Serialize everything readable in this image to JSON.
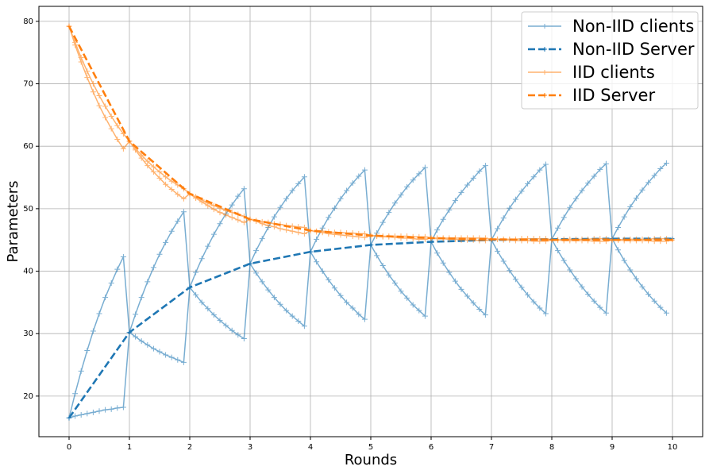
{
  "chart_data": {
    "type": "line",
    "xlabel": "Rounds",
    "ylabel": "Parameters",
    "xlim": [
      -0.5,
      10.5
    ],
    "ylim": [
      13.5,
      82.4
    ],
    "xticks": [
      0,
      1,
      2,
      3,
      4,
      5,
      6,
      7,
      8,
      9,
      10
    ],
    "yticks": [
      20,
      30,
      40,
      50,
      60,
      70,
      80
    ],
    "grid": true,
    "legend": "upper-right",
    "series": [
      {
        "name": "Non-IID clients",
        "color": "#1f77b4",
        "dashed": false,
        "marker": "plus",
        "x": [
          0,
          0.1,
          0.2,
          0.3,
          0.4,
          0.5,
          0.6,
          0.7,
          0.8,
          0.9,
          1,
          1.1,
          1.2,
          1.3,
          1.4,
          1.5,
          1.6,
          1.7,
          1.8,
          1.9,
          2,
          2.1,
          2.2,
          2.3,
          2.4,
          2.5,
          2.6,
          2.7,
          2.8,
          2.9,
          3,
          3.1,
          3.2,
          3.3,
          3.4,
          3.5,
          3.6,
          3.7,
          3.8,
          3.9,
          4,
          4.1,
          4.2,
          4.3,
          4.4,
          4.5,
          4.6,
          4.7,
          4.8,
          4.9,
          5,
          5.1,
          5.2,
          5.3,
          5.4,
          5.5,
          5.6,
          5.7,
          5.8,
          5.9,
          6,
          6.1,
          6.2,
          6.3,
          6.4,
          6.5,
          6.6,
          6.7,
          6.8,
          6.9,
          7,
          7.1,
          7.2,
          7.3,
          7.4,
          7.5,
          7.6,
          7.7,
          7.8,
          7.9,
          8,
          8.1,
          8.2,
          8.3,
          8.4,
          8.5,
          8.6,
          8.7,
          8.8,
          8.9,
          9,
          9.1,
          9.2,
          9.3,
          9.4,
          9.5,
          9.6,
          9.7,
          9.8,
          9.9
        ],
        "lines": [
          [
            16.5,
            20.4,
            24.0,
            27.3,
            30.4,
            33.2,
            35.8,
            38.1,
            40.3,
            42.3,
            30.2,
            29.5,
            28.8,
            28.2,
            27.6,
            27.1,
            26.6,
            26.2,
            25.8,
            25.4,
            37.4,
            39.8,
            42.0,
            44.0,
            45.9,
            47.6,
            49.2,
            50.6,
            52.0,
            53.2,
            41.2,
            39.7,
            38.3,
            37.0,
            35.8,
            34.7,
            33.7,
            32.8,
            32.0,
            31.2,
            43.1,
            45.1,
            46.9,
            48.6,
            50.1,
            51.6,
            52.9,
            54.1,
            55.2,
            56.2,
            44.2,
            42.5,
            40.9,
            39.4,
            38.1,
            36.8,
            35.7,
            34.6,
            33.7,
            32.8,
            44.7,
            46.6,
            48.3,
            49.8,
            51.3,
            52.6,
            53.8,
            54.9,
            56.0,
            56.9,
            45.0,
            43.2,
            41.6,
            40.1,
            38.7,
            37.4,
            36.2,
            35.1,
            34.1,
            33.2,
            45.1,
            46.9,
            48.6,
            50.2,
            51.6,
            52.9,
            54.1,
            55.2,
            56.3,
            57.2,
            45.2,
            43.4,
            41.7,
            40.2,
            38.8,
            37.5,
            36.3,
            35.2,
            34.2,
            33.3
          ],
          [
            16.5,
            16.8,
            17.0,
            17.2,
            17.4,
            17.6,
            17.8,
            17.9,
            18.1,
            18.2,
            30.2,
            33.1,
            35.8,
            38.3,
            40.6,
            42.7,
            44.6,
            46.4,
            48.0,
            49.5,
            37.4,
            36.2,
            35.0,
            34.0,
            33.0,
            32.1,
            31.3,
            30.5,
            29.8,
            29.2,
            41.2,
            43.3,
            45.2,
            47.0,
            48.7,
            50.2,
            51.6,
            52.9,
            54.0,
            55.1,
            43.1,
            41.5,
            40.0,
            38.6,
            37.3,
            36.1,
            35.0,
            34.1,
            33.1,
            32.3,
            44.2,
            46.1,
            47.8,
            49.4,
            50.9,
            52.2,
            53.5,
            54.6,
            55.6,
            56.6,
            44.7,
            42.9,
            41.3,
            39.8,
            38.4,
            37.1,
            36.0,
            34.9,
            33.9,
            33.0,
            45.0,
            46.8,
            48.5,
            50.1,
            51.5,
            52.8,
            54.0,
            55.1,
            56.2,
            57.1,
            45.1,
            43.3,
            41.7,
            40.2,
            38.8,
            37.5,
            36.3,
            35.2,
            34.2,
            33.3,
            45.2,
            47.0,
            48.7,
            50.3,
            51.7,
            53.0,
            54.2,
            55.3,
            56.4,
            57.3
          ]
        ]
      },
      {
        "name": "Non-IID Server",
        "color": "#1f77b4",
        "dashed": true,
        "marker": "plus",
        "x": [
          0,
          1,
          2,
          3,
          4,
          5,
          6,
          7,
          8,
          9,
          10
        ],
        "lines": [
          [
            16.5,
            30.2,
            37.4,
            41.2,
            43.1,
            44.2,
            44.7,
            45.0,
            45.1,
            45.2,
            45.2
          ]
        ]
      },
      {
        "name": "IID clients",
        "color": "#ff7f0e",
        "dashed": false,
        "marker": "plus",
        "x": [
          0,
          0.1,
          0.2,
          0.3,
          0.4,
          0.5,
          0.6,
          0.7,
          0.8,
          0.9,
          1,
          1.1,
          1.2,
          1.3,
          1.4,
          1.5,
          1.6,
          1.7,
          1.8,
          1.9,
          2,
          2.1,
          2.2,
          2.3,
          2.4,
          2.5,
          2.6,
          2.7,
          2.8,
          2.9,
          3,
          3.1,
          3.2,
          3.3,
          3.4,
          3.5,
          3.6,
          3.7,
          3.8,
          3.9,
          4,
          4.1,
          4.2,
          4.3,
          4.4,
          4.5,
          4.6,
          4.7,
          4.8,
          4.9,
          5,
          5.1,
          5.2,
          5.3,
          5.4,
          5.5,
          5.6,
          5.7,
          5.8,
          5.9,
          6,
          6.1,
          6.2,
          6.3,
          6.4,
          6.5,
          6.6,
          6.7,
          6.8,
          6.9,
          7,
          7.1,
          7.2,
          7.3,
          7.4,
          7.5,
          7.6,
          7.7,
          7.8,
          7.9,
          8,
          8.1,
          8.2,
          8.3,
          8.4,
          8.5,
          8.6,
          8.7,
          8.8,
          8.9,
          9,
          9.1,
          9.2,
          9.3,
          9.4,
          9.5,
          9.6,
          9.7,
          9.8,
          9.9
        ],
        "lines": [
          [
            79.2,
            76.2,
            73.5,
            71.0,
            68.7,
            66.5,
            64.6,
            62.8,
            61.1,
            59.6,
            60.8,
            59.4,
            58.1,
            56.9,
            55.9,
            54.9,
            53.9,
            53.1,
            52.3,
            51.6,
            52.4,
            51.7,
            51.1,
            50.5,
            49.9,
            49.4,
            49.0,
            48.6,
            48.2,
            47.8,
            48.3,
            48.0,
            47.6,
            47.3,
            47.1,
            46.8,
            46.6,
            46.4,
            46.2,
            46.0,
            46.5,
            46.3,
            46.2,
            46.0,
            45.9,
            45.8,
            45.7,
            45.6,
            45.5,
            45.4,
            45.7,
            45.6,
            45.5,
            45.5,
            45.4,
            45.3,
            45.3,
            45.2,
            45.1,
            45.1,
            45.3,
            45.2,
            45.2,
            45.1,
            45.1,
            45.0,
            45.0,
            45.0,
            44.9,
            44.9,
            45.1,
            45.1,
            45.0,
            45.0,
            44.9,
            44.9,
            44.9,
            44.8,
            44.8,
            44.8,
            45.0,
            45.0,
            44.9,
            44.9,
            44.9,
            44.9,
            44.9,
            44.8,
            44.8,
            44.8,
            45.0,
            45.0,
            44.9,
            44.9,
            44.9,
            44.9,
            44.9,
            44.8,
            44.8,
            44.8
          ],
          [
            79.2,
            76.6,
            74.2,
            72.0,
            70.0,
            68.1,
            66.4,
            64.8,
            63.3,
            62.0,
            60.8,
            59.6,
            58.6,
            57.6,
            56.7,
            55.9,
            55.1,
            54.4,
            53.8,
            53.2,
            52.4,
            51.9,
            51.4,
            50.9,
            50.5,
            50.1,
            49.7,
            49.4,
            49.1,
            48.8,
            48.3,
            48.1,
            47.9,
            47.8,
            47.6,
            47.5,
            47.3,
            47.2,
            47.1,
            47.0,
            46.5,
            46.4,
            46.4,
            46.3,
            46.2,
            46.2,
            46.1,
            46.1,
            46.0,
            46.0,
            45.7,
            45.7,
            45.6,
            45.6,
            45.6,
            45.6,
            45.6,
            45.5,
            45.5,
            45.5,
            45.3,
            45.3,
            45.3,
            45.3,
            45.3,
            45.3,
            45.3,
            45.3,
            45.3,
            45.3,
            45.1,
            45.1,
            45.1,
            45.1,
            45.1,
            45.2,
            45.2,
            45.2,
            45.2,
            45.2,
            45.0,
            45.0,
            45.1,
            45.1,
            45.1,
            45.1,
            45.1,
            45.2,
            45.2,
            45.2,
            45.0,
            45.0,
            45.1,
            45.1,
            45.1,
            45.1,
            45.1,
            45.2,
            45.2,
            45.2
          ]
        ]
      },
      {
        "name": "IID Server",
        "color": "#ff7f0e",
        "dashed": true,
        "marker": "plus",
        "x": [
          0,
          1,
          2,
          3,
          4,
          5,
          6,
          7,
          8,
          9,
          10
        ],
        "lines": [
          [
            79.2,
            60.8,
            52.4,
            48.3,
            46.5,
            45.7,
            45.3,
            45.1,
            45.0,
            45.0,
            45.0
          ]
        ]
      }
    ]
  }
}
